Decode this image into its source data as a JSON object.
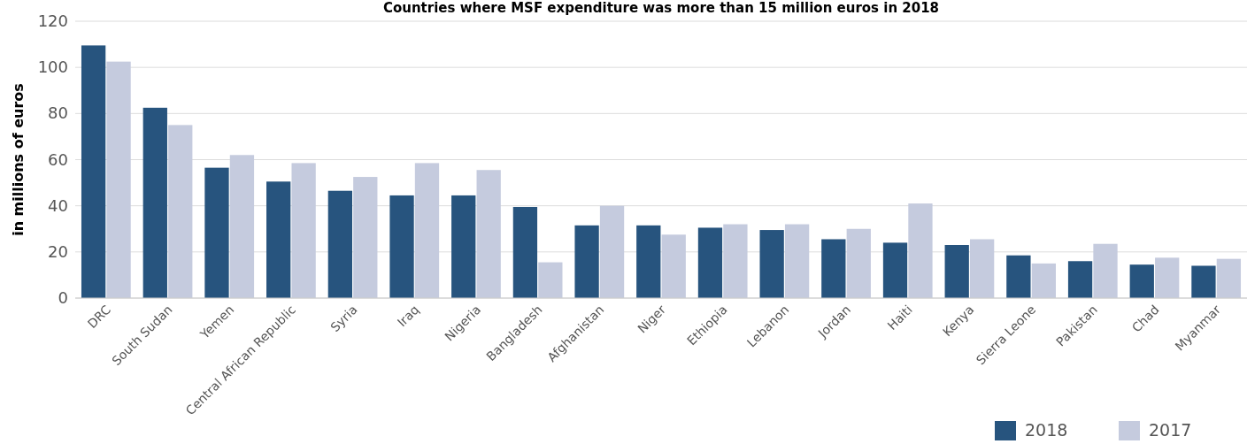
{
  "chart_data": {
    "type": "bar",
    "title": "Countries where MSF expenditure was more than 15 million euros in 2018",
    "ylabel": "in millions of euros",
    "categories": [
      "DRC",
      "South Sudan",
      "Yemen",
      "Central African Republic",
      "Syria",
      "Iraq",
      "Nigeria",
      "Bangladesh",
      "Afghanistan",
      "Niger",
      "Ethiopia",
      "Lebanon",
      "Jordan",
      "Haiti",
      "Kenya",
      "Sierra Leone",
      "Pakistan",
      "Chad",
      "Myanmar"
    ],
    "series": [
      {
        "name": "2018",
        "color": "#27547e",
        "values": [
          109.5,
          82.5,
          56.5,
          50.5,
          46.5,
          44.5,
          44.5,
          39.5,
          31.5,
          31.5,
          30.5,
          29.5,
          25.5,
          24,
          23,
          18.5,
          16,
          14.5,
          14
        ]
      },
      {
        "name": "2017",
        "color": "#c5cbde",
        "values": [
          102.5,
          75,
          62,
          58.5,
          52.5,
          58.5,
          55.5,
          15.5,
          40,
          27.5,
          32,
          32,
          30,
          41,
          25.5,
          15,
          23.5,
          17.5,
          17
        ]
      }
    ],
    "ylim": [
      0,
      120
    ],
    "yticks": [
      0,
      20,
      40,
      60,
      80,
      100,
      120
    ],
    "grid": "y",
    "legend": "bottom right"
  }
}
